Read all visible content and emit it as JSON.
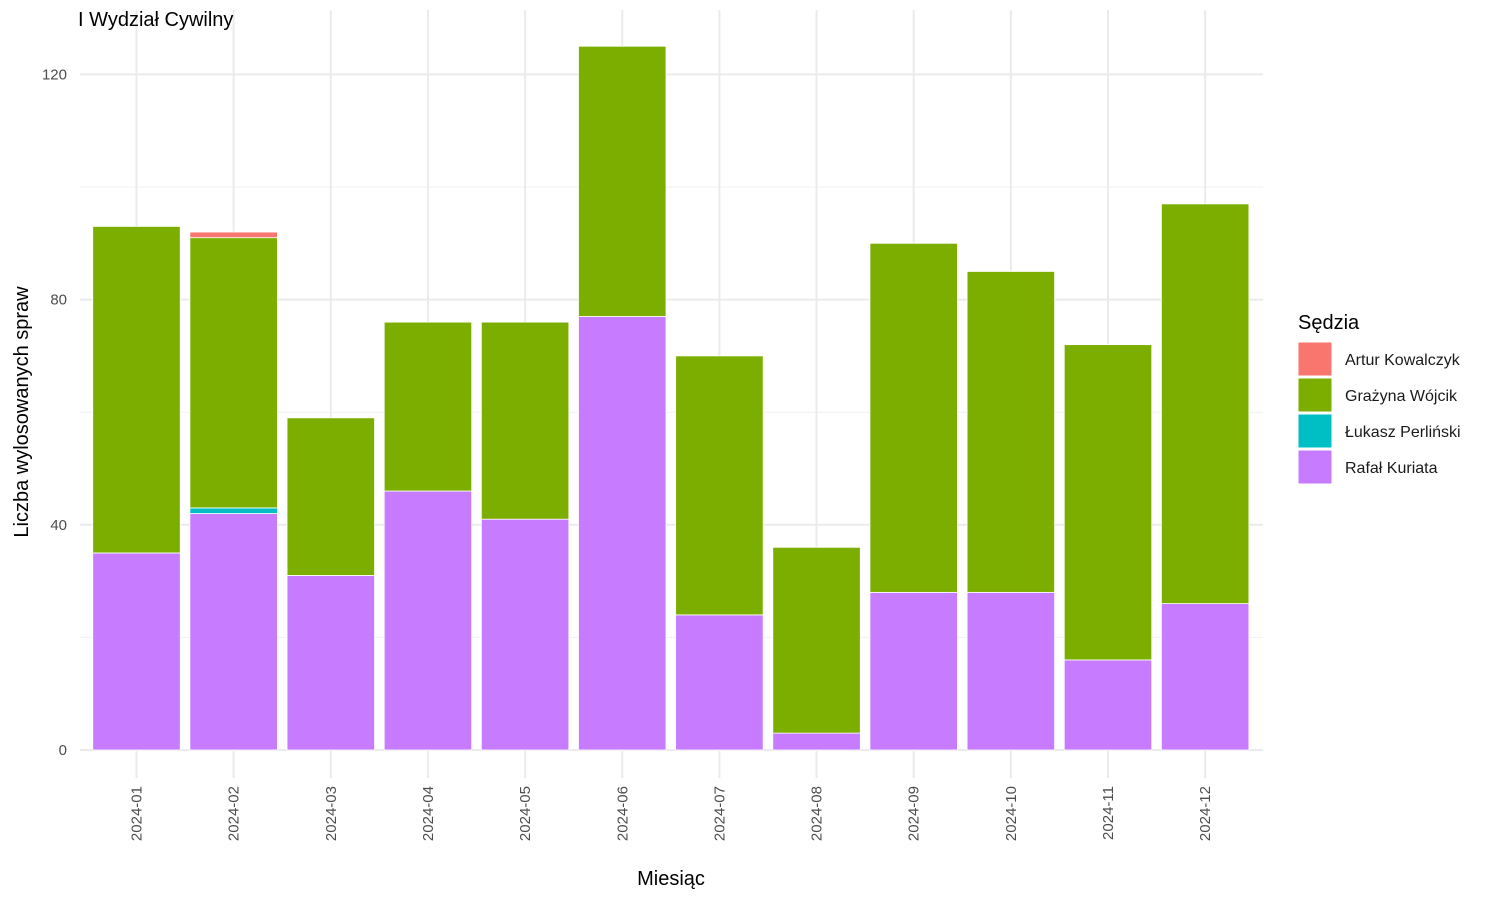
{
  "chart_data": {
    "type": "bar",
    "stacked": true,
    "title": "I Wydział Cywilny",
    "xlabel": "Miesiąc",
    "ylabel": "Liczba wylosowanych spraw",
    "ylim": [
      0,
      128
    ],
    "y_ticks": [
      0,
      40,
      80,
      120
    ],
    "grid": true,
    "legend": {
      "title": "Sędzia",
      "position": "right"
    },
    "categories": [
      "2024-01",
      "2024-02",
      "2024-03",
      "2024-04",
      "2024-05",
      "2024-06",
      "2024-07",
      "2024-08",
      "2024-09",
      "2024-10",
      "2024-11",
      "2024-12"
    ],
    "series": [
      {
        "name": "Rafał Kuriata",
        "color": "#C77CFF",
        "values": [
          35,
          42,
          31,
          46,
          41,
          77,
          24,
          3,
          28,
          28,
          16,
          26
        ]
      },
      {
        "name": "Łukasz Perliński",
        "color": "#00BFC4",
        "values": [
          0,
          1,
          0,
          0,
          0,
          0,
          0,
          0,
          0,
          0,
          0,
          0
        ]
      },
      {
        "name": "Grażyna Wójcik",
        "color": "#7CAE00",
        "values": [
          58,
          48,
          28,
          30,
          35,
          48,
          46,
          33,
          62,
          57,
          56,
          71
        ]
      },
      {
        "name": "Artur Kowalczyk",
        "color": "#F8766D",
        "values": [
          0,
          1,
          0,
          0,
          0,
          0,
          0,
          0,
          0,
          0,
          0,
          0
        ]
      }
    ],
    "legend_order": [
      "Artur Kowalczyk",
      "Grażyna Wójcik",
      "Łukasz Perliński",
      "Rafał Kuriata"
    ]
  }
}
